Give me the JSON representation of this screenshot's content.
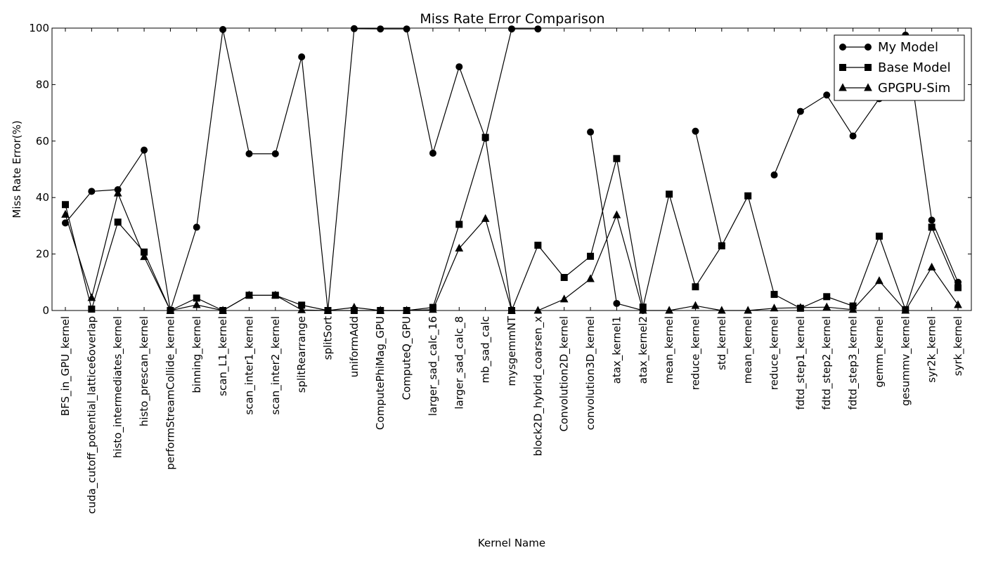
{
  "chart_data": {
    "type": "line",
    "title": "Miss Rate Error Comparison",
    "xlabel": "Kernel Name",
    "ylabel": "Miss Rate Error(%)",
    "ylim": [
      0,
      100
    ],
    "yticks": [
      0,
      20,
      40,
      60,
      80,
      100
    ],
    "grid": false,
    "legend_position": "top-right",
    "categories": [
      "BFS_in_GPU_kernel",
      "cuda_cutoff_potential_lattice6overlap",
      "histo_intermediates_kernel",
      "histo_prescan_kernel",
      "performStreamCollide_kernel",
      "binning_kernel",
      "scan_L1_kernel",
      "scan_inter1_kernel",
      "scan_inter2_kernel",
      "splitRearrange",
      "splitSort",
      "uniformAdd",
      "ComputePhiMag_GPU",
      "ComputeQ_GPU",
      "larger_sad_calc_16",
      "larger_sad_calc_8",
      "mb_sad_calc",
      "mysgemmNT",
      "block2D_hybrid_coarsen_x",
      "Convolution2D_kernel",
      "convolution3D_kernel",
      "atax_kernel1",
      "atax_kernel2",
      "mean_kernel",
      "reduce_kernel",
      "std_kernel",
      "mean_kernel",
      "reduce_kernel",
      "fdtd_step1_kernel",
      "fdtd_step2_kernel",
      "fdtd_step3_kernel",
      "gemm_kernel",
      "gesummv_kernel",
      "syr2k_kernel",
      "syrk_kernel"
    ],
    "series": [
      {
        "name": "My Model",
        "marker": "circle",
        "values": [
          31,
          42.2,
          42.8,
          56.8,
          0,
          29.5,
          99.5,
          55.5,
          55.5,
          89.8,
          0,
          99.8,
          99.7,
          99.7,
          55.7,
          86.3,
          61,
          99.7,
          99.7,
          null,
          63.2,
          2.5,
          0,
          null,
          63.5,
          23,
          null,
          48,
          70.5,
          76.3,
          61.8,
          75,
          97.5,
          32,
          10
        ]
      },
      {
        "name": "Base Model",
        "marker": "square",
        "values": [
          37.5,
          0.5,
          31.3,
          20.7,
          0,
          4.4,
          0,
          5.4,
          5.4,
          1.9,
          0,
          0,
          0,
          0,
          1.1,
          30.5,
          61.3,
          0,
          23.1,
          11.7,
          19.2,
          53.8,
          1.2,
          41.2,
          8.4,
          22.9,
          40.6,
          5.7,
          0.8,
          4.9,
          1.6,
          26.3,
          0.3,
          29.5,
          8.1
        ]
      },
      {
        "name": "GPGPU-Sim",
        "marker": "triangle",
        "values": [
          34,
          4.5,
          41.5,
          19,
          0,
          2,
          0,
          5.4,
          5.4,
          0.2,
          0,
          1.1,
          0,
          0,
          0.3,
          22,
          32.5,
          0,
          0,
          4,
          11.2,
          33.8,
          0,
          0,
          1.7,
          0,
          0,
          0.8,
          1,
          1.2,
          0.3,
          10.5,
          0,
          15.3,
          2
        ]
      }
    ]
  }
}
